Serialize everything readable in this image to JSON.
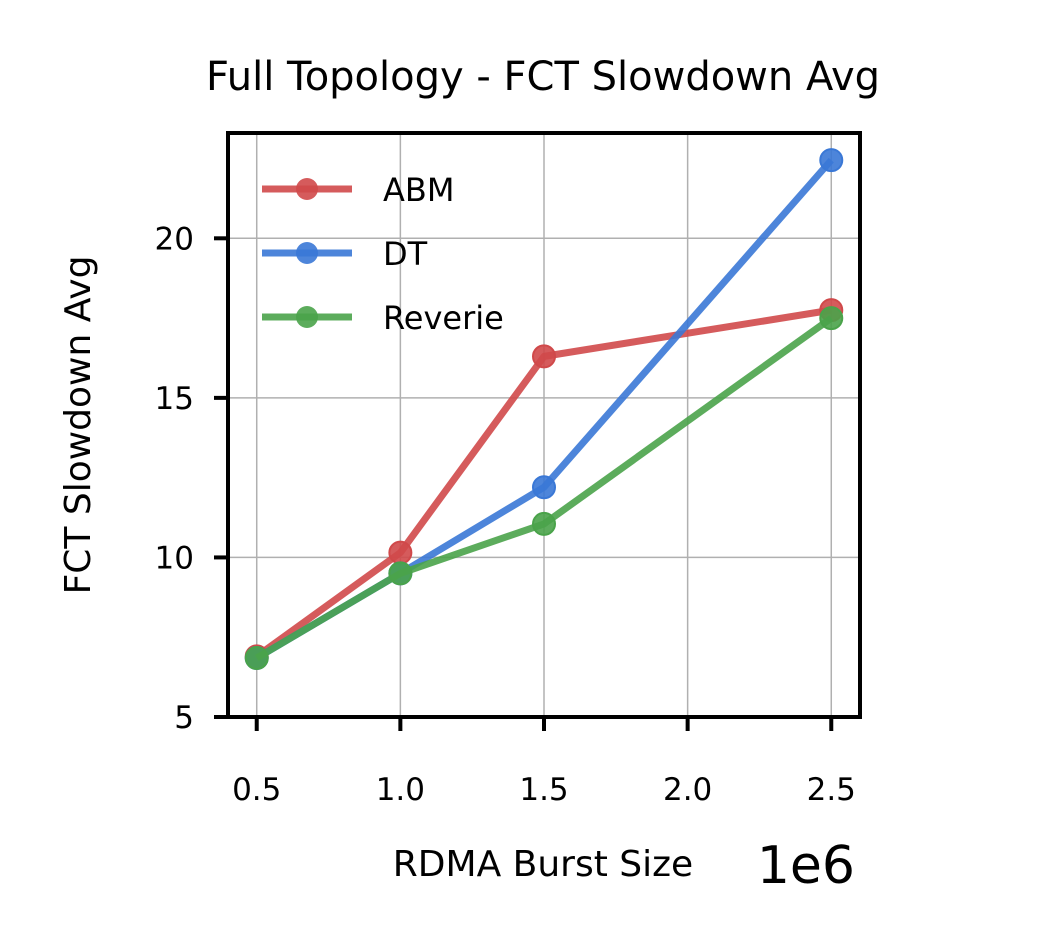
{
  "chart_data": {
    "type": "line",
    "title": "Full Topology - FCT Slowdown Avg",
    "xlabel": "RDMA Burst Size",
    "ylabel": "FCT Slowdown Avg",
    "x_offset_label": "1e6",
    "x": [
      0.5,
      1.0,
      1.5,
      2.5
    ],
    "xlim": [
      0.4,
      2.6
    ],
    "ylim": [
      5,
      23.3
    ],
    "xticks": [
      0.5,
      1.0,
      1.5,
      2.0,
      2.5
    ],
    "xtick_labels": [
      "0.5",
      "1.0",
      "1.5",
      "2.0",
      "2.5"
    ],
    "yticks": [
      5,
      10,
      15,
      20
    ],
    "ytick_labels": [
      "5",
      "10",
      "15",
      "20"
    ],
    "grid": true,
    "legend_position": "top-left",
    "series": [
      {
        "name": "ABM",
        "color": "#d0494a",
        "values": [
          6.9,
          10.15,
          16.3,
          17.75
        ]
      },
      {
        "name": "DT",
        "color": "#3a78d6",
        "values": [
          6.85,
          9.5,
          12.2,
          22.45
        ]
      },
      {
        "name": "Reverie",
        "color": "#4aa34a",
        "values": [
          6.85,
          9.5,
          11.05,
          17.5
        ]
      }
    ]
  }
}
